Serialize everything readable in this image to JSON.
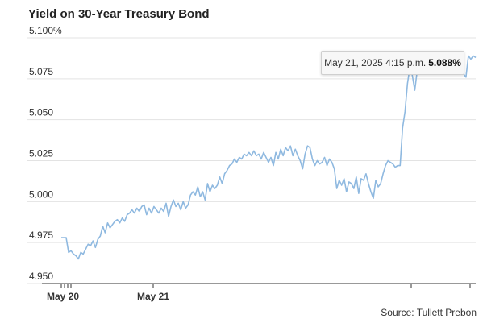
{
  "title": "Yield on 30-Year Treasury Bond",
  "source": "Source: Tullett Prebon",
  "tooltip": {
    "datetime": "May 21, 2025 4:15 p.m.",
    "value": "5.088%"
  },
  "colors": {
    "line": "#8fb9e0",
    "grid": "#e3e3e3",
    "axis": "#333333"
  },
  "chart_data": {
    "type": "line",
    "title": "Yield on 30-Year Treasury Bond",
    "xlabel": "",
    "ylabel": "",
    "ylim": [
      4.95,
      5.1
    ],
    "yticks": [
      "4.950",
      "4.975",
      "5.000",
      "5.025",
      "5.050",
      "5.075",
      "5.100%"
    ],
    "ytick_values": [
      4.95,
      4.975,
      5.0,
      5.025,
      5.05,
      5.075,
      5.1
    ],
    "xticks": [
      "May 20",
      "May 21"
    ],
    "xtick_positions": [
      0.02,
      0.22
    ],
    "grid": true,
    "legend": "none",
    "series": [
      {
        "values": [
          4.978,
          4.978,
          4.978,
          4.969,
          4.97,
          4.968,
          4.967,
          4.965,
          4.969,
          4.968,
          4.971,
          4.974,
          4.973,
          4.976,
          4.972,
          4.977,
          4.979,
          4.985,
          4.981,
          4.987,
          4.984,
          4.986,
          4.988,
          4.989,
          4.987,
          4.99,
          4.988,
          4.992,
          4.993,
          4.995,
          4.993,
          4.996,
          4.994,
          4.997,
          4.998,
          4.992,
          4.996,
          4.993,
          4.997,
          4.995,
          4.993,
          4.996,
          4.994,
          4.999,
          4.991,
          4.997,
          5.001,
          4.997,
          4.999,
          4.995,
          5.0,
          4.996,
          4.998,
          5.004,
          5.006,
          5.004,
          5.009,
          5.003,
          5.006,
          5.001,
          5.011,
          5.006,
          5.01,
          5.008,
          5.01,
          5.015,
          5.011,
          5.017,
          5.019,
          5.022,
          5.023,
          5.026,
          5.024,
          5.027,
          5.026,
          5.029,
          5.028,
          5.03,
          5.028,
          5.031,
          5.028,
          5.029,
          5.026,
          5.03,
          5.027,
          5.024,
          5.027,
          5.022,
          5.03,
          5.026,
          5.032,
          5.028,
          5.033,
          5.031,
          5.034,
          5.028,
          5.032,
          5.028,
          5.025,
          5.02,
          5.029,
          5.034,
          5.033,
          5.026,
          5.022,
          5.025,
          5.023,
          5.024,
          5.027,
          5.022,
          5.026,
          5.024,
          5.02,
          5.008,
          5.013,
          5.01,
          5.014,
          5.006,
          5.012,
          5.011,
          5.008,
          5.015,
          5.005,
          5.014,
          5.013,
          5.017,
          5.011,
          5.006,
          5.002,
          5.013,
          5.009,
          5.011,
          5.017,
          5.022,
          5.025,
          5.024,
          5.023,
          5.021,
          5.022,
          5.022,
          5.045,
          5.055,
          5.072,
          5.082,
          5.077,
          5.068,
          5.08,
          5.079,
          5.085,
          5.081,
          5.083,
          5.081,
          5.087,
          5.079,
          5.083,
          5.081,
          5.085,
          5.083,
          5.079,
          5.086,
          5.081,
          5.08,
          5.086,
          5.081,
          5.083,
          5.078,
          5.076,
          5.089,
          5.087,
          5.089,
          5.088
        ]
      }
    ]
  }
}
